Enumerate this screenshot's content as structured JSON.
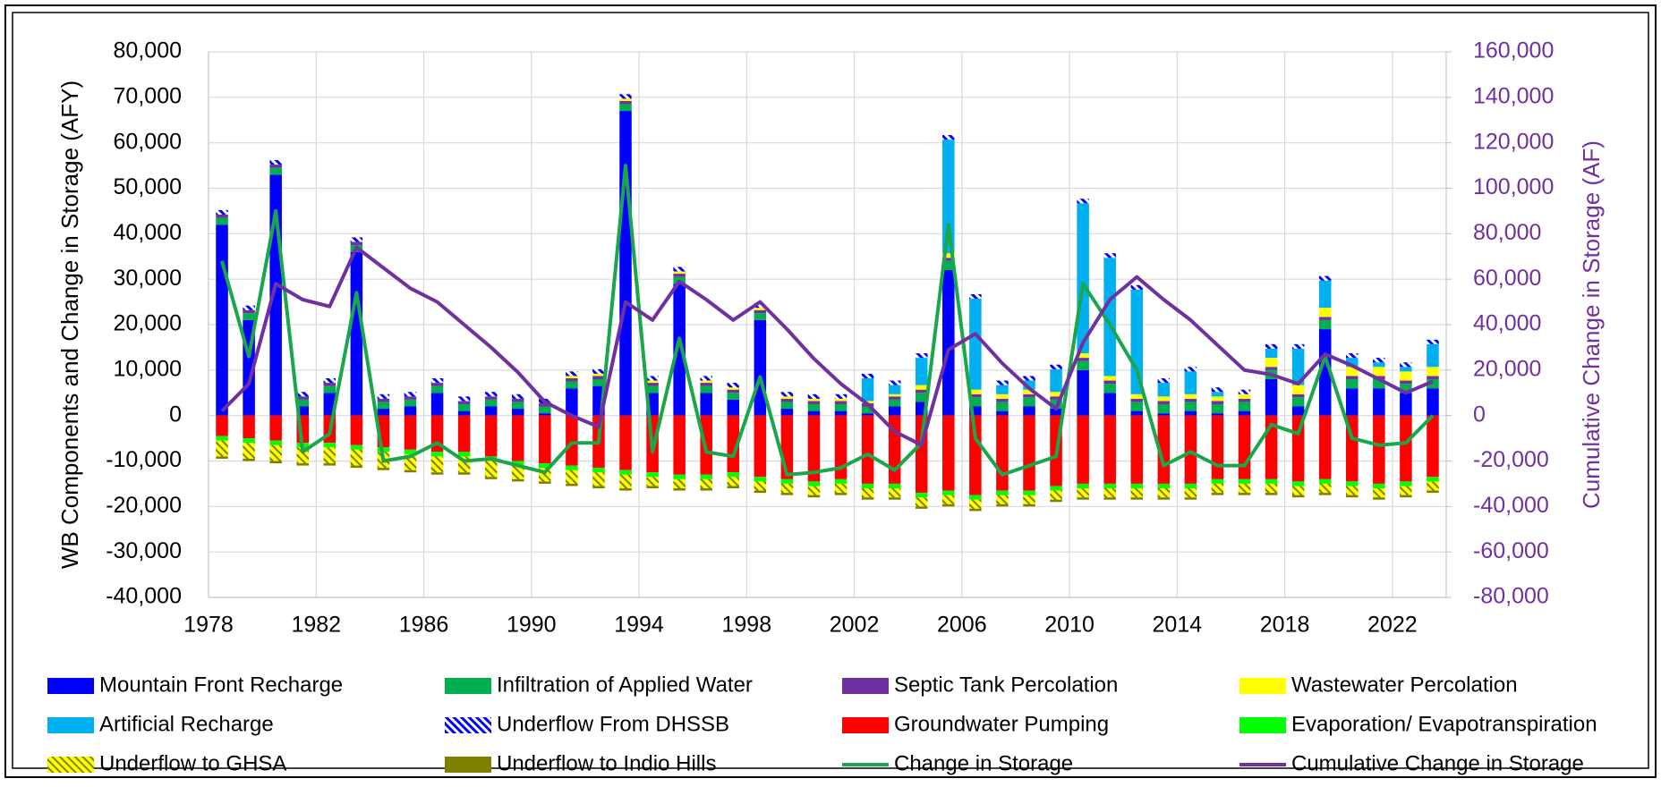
{
  "chart_data": {
    "type": "bar",
    "stacked": true,
    "categories": [
      "1978",
      null,
      null,
      null,
      "1982",
      null,
      null,
      null,
      "1986",
      null,
      null,
      null,
      "1990",
      null,
      null,
      null,
      "1994",
      null,
      null,
      null,
      "1998",
      null,
      null,
      null,
      "2002",
      null,
      null,
      null,
      "2006",
      null,
      null,
      null,
      "2010",
      null,
      null,
      null,
      "2014",
      null,
      null,
      null,
      "2018",
      null,
      null,
      null,
      "2022",
      null
    ],
    "y_label": "WB Components and Change in Storage (AFY)",
    "y2_label": "Cumulative Change in Storage (AF)",
    "ylim": [
      -40000,
      80000
    ],
    "yticks": [
      {
        "value": -40000,
        "label": "-40,000"
      },
      {
        "value": -30000,
        "label": "-30,000"
      },
      {
        "value": -20000,
        "label": "-20,000"
      },
      {
        "value": -10000,
        "label": "-10,000"
      },
      0,
      {
        "value": 10000,
        "label": "10,000"
      },
      {
        "value": 20000,
        "label": "20,000"
      },
      {
        "value": 30000,
        "label": "30,000"
      },
      {
        "value": 40000,
        "label": "40,000"
      },
      {
        "value": 50000,
        "label": "50,000"
      },
      {
        "value": 60000,
        "label": "60,000"
      },
      {
        "value": 70000,
        "label": "70,000"
      },
      {
        "value": 80000,
        "label": "80,000"
      }
    ],
    "y2lim": [
      -80000,
      160000
    ],
    "y2ticks": [
      {
        "value": -80000,
        "label": "-80,000"
      },
      {
        "value": -60000,
        "label": "-60,000"
      },
      {
        "value": -40000,
        "label": "-40,000"
      },
      {
        "value": -20000,
        "label": "-20,000"
      },
      0,
      {
        "value": 20000,
        "label": "20,000"
      },
      {
        "value": 40000,
        "label": "40,000"
      },
      {
        "value": 60000,
        "label": "60,000"
      },
      {
        "value": 80000,
        "label": "80,000"
      },
      {
        "value": 100000,
        "label": "100,000"
      },
      {
        "value": 120000,
        "label": "120,000"
      },
      {
        "value": 140000,
        "label": "140,000"
      },
      {
        "value": 160000,
        "label": "160,000"
      }
    ],
    "grid": true,
    "legend": "bottom",
    "series": [
      {
        "name": "Mountain Front Recharge",
        "color": "#0000ff",
        "values": [
          42000,
          21000,
          53000,
          2000,
          5000,
          36000,
          1500,
          2000,
          5000,
          1000,
          2000,
          1500,
          500,
          6000,
          6500,
          67000,
          5000,
          29000,
          5000,
          3500,
          21000,
          1500,
          1000,
          1000,
          500,
          2000,
          3000,
          32000,
          2000,
          1000,
          2000,
          1500,
          10000,
          5000,
          1000,
          500,
          1000,
          500,
          1000,
          8000,
          2000,
          19000,
          6000,
          6000,
          5000,
          6000
        ]
      },
      {
        "name": "Infiltration of Applied Water",
        "color": "#00b050",
        "values": [
          1500,
          1500,
          1500,
          1500,
          1500,
          1500,
          1500,
          1500,
          1500,
          1500,
          1500,
          1500,
          1500,
          1500,
          1500,
          1500,
          1500,
          1500,
          1500,
          1500,
          1500,
          1500,
          1500,
          1500,
          1500,
          1500,
          2000,
          2000,
          2000,
          2000,
          2000,
          2000,
          2000,
          2000,
          2000,
          2000,
          2000,
          2000,
          2000,
          2000,
          2000,
          2000,
          2000,
          2000,
          2000,
          2000
        ]
      },
      {
        "name": "Septic Tank Percolation",
        "color": "#7030a0",
        "values": [
          700,
          700,
          700,
          700,
          700,
          700,
          700,
          700,
          700,
          700,
          700,
          700,
          700,
          700,
          700,
          700,
          700,
          700,
          700,
          700,
          700,
          700,
          700,
          700,
          700,
          700,
          700,
          700,
          700,
          700,
          700,
          700,
          700,
          700,
          700,
          700,
          700,
          700,
          700,
          700,
          700,
          700,
          700,
          700,
          700,
          700
        ]
      },
      {
        "name": "Wastewater Percolation",
        "color": "#ffff00",
        "values": [
          0,
          0,
          0,
          0,
          0,
          0,
          0,
          0,
          0,
          0,
          0,
          0,
          0,
          500,
          500,
          500,
          500,
          500,
          500,
          500,
          500,
          500,
          500,
          500,
          500,
          500,
          1000,
          1000,
          1000,
          1000,
          1000,
          1000,
          1000,
          1000,
          1000,
          1000,
          1000,
          1000,
          1000,
          2000,
          2000,
          2000,
          2000,
          2000,
          2000,
          2000
        ]
      },
      {
        "name": "Artificial Recharge",
        "color": "#00b0f0",
        "values": [
          0,
          0,
          0,
          0,
          0,
          0,
          0,
          0,
          0,
          0,
          0,
          0,
          0,
          0,
          0,
          0,
          0,
          0,
          0,
          0,
          0,
          0,
          0,
          0,
          5000,
          2000,
          6000,
          25000,
          20000,
          2000,
          2000,
          5000,
          33000,
          26000,
          23000,
          3000,
          5000,
          1000,
          0,
          2000,
          8000,
          6000,
          2000,
          1000,
          1000,
          5000
        ]
      },
      {
        "name": "Underflow From DHSSB",
        "color": "#0000ff",
        "hatch": true,
        "values": [
          1000,
          1000,
          1000,
          1000,
          1000,
          1000,
          1000,
          1000,
          1000,
          1000,
          1000,
          1000,
          1000,
          1000,
          1000,
          1000,
          1000,
          1000,
          1000,
          1000,
          1000,
          1000,
          1000,
          1000,
          1000,
          1000,
          1000,
          1000,
          1000,
          1000,
          1000,
          1000,
          1000,
          1000,
          1000,
          1000,
          1000,
          1000,
          1000,
          1000,
          1000,
          1000,
          1000,
          1000,
          1000,
          1000
        ]
      },
      {
        "name": "Groundwater Pumping",
        "color": "#ff0000",
        "values": [
          -4500,
          -5000,
          -5500,
          -6000,
          -6000,
          -6500,
          -7000,
          -7500,
          -8000,
          -8000,
          -9000,
          -10000,
          -10500,
          -11000,
          -11500,
          -12000,
          -12500,
          -13000,
          -13000,
          -12500,
          -13500,
          -14000,
          -14500,
          -14000,
          -15000,
          -15000,
          -17000,
          -16500,
          -17500,
          -16500,
          -16500,
          -15500,
          -15000,
          -15000,
          -15000,
          -15000,
          -15000,
          -14000,
          -14000,
          -14000,
          -14500,
          -14000,
          -14500,
          -15000,
          -14500,
          -13500
        ]
      },
      {
        "name": "Evaporation/ Evapotranspiration",
        "color": "#00ff00",
        "values": [
          -1000,
          -1000,
          -1000,
          -1000,
          -1000,
          -1000,
          -1000,
          -1000,
          -1000,
          -1000,
          -1000,
          -1000,
          -1000,
          -1000,
          -1000,
          -1000,
          -1000,
          -1000,
          -1000,
          -1000,
          -1000,
          -1000,
          -1000,
          -1000,
          -1000,
          -1000,
          -1000,
          -1000,
          -1000,
          -1000,
          -1000,
          -1000,
          -1000,
          -1000,
          -1000,
          -1000,
          -1000,
          -1000,
          -1000,
          -1000,
          -1000,
          -1000,
          -1000,
          -1000,
          -1000,
          -1000
        ]
      },
      {
        "name": "Underflow to GHSA",
        "color": "#ffff00",
        "hatch": true,
        "values": [
          -3500,
          -3500,
          -3500,
          -3500,
          -3500,
          -3500,
          -3500,
          -3500,
          -3500,
          -3500,
          -3500,
          -3000,
          -3000,
          -3000,
          -3000,
          -3000,
          -2000,
          -2000,
          -2000,
          -2000,
          -2000,
          -2000,
          -2000,
          -2000,
          -2000,
          -2000,
          -2000,
          -2000,
          -2000,
          -2000,
          -2000,
          -2000,
          -2000,
          -2000,
          -2000,
          -2000,
          -2000,
          -2000,
          -2000,
          -2000,
          -2000,
          -2000,
          -2000,
          -2000,
          -2000,
          -2000
        ]
      },
      {
        "name": "Underflow to Indio Hills",
        "color": "#808000",
        "values": [
          -500,
          -500,
          -500,
          -500,
          -500,
          -500,
          -500,
          -500,
          -500,
          -500,
          -500,
          -500,
          -500,
          -500,
          -500,
          -500,
          -500,
          -500,
          -500,
          -500,
          -500,
          -500,
          -500,
          -500,
          -500,
          -500,
          -500,
          -500,
          -500,
          -500,
          -500,
          -500,
          -500,
          -500,
          -500,
          -500,
          -500,
          -500,
          -500,
          -500,
          -500,
          -500,
          -500,
          -500,
          -500,
          -500
        ]
      },
      {
        "name": "Change in Storage",
        "color": "#1aa64a",
        "type": "line",
        "values": [
          34000,
          13000,
          45000,
          -8000,
          -4000,
          27000,
          -10000,
          -9000,
          -6000,
          -10000,
          -9500,
          -11000,
          -12500,
          -6000,
          -6000,
          55000,
          -8000,
          17000,
          -8000,
          -9000,
          8500,
          -13000,
          -12500,
          -11500,
          -8500,
          -12000,
          -6000,
          42000,
          -5000,
          -13000,
          -11000,
          -9000,
          29000,
          20000,
          10000,
          -11000,
          -8000,
          -11000,
          -11000,
          -2000,
          -4000,
          13000,
          -5000,
          -6500,
          -6000,
          0
        ]
      },
      {
        "name": "Cumulative Change in Storage",
        "color": "#7030a0",
        "type": "line",
        "axis": "y2",
        "values": [
          2000,
          14000,
          58000,
          51000,
          48000,
          74000,
          65000,
          56000,
          50000,
          40000,
          30000,
          19000,
          6000,
          0,
          -5000,
          50000,
          42000,
          59000,
          51000,
          42000,
          50000,
          38000,
          25000,
          14000,
          5000,
          -7000,
          -13000,
          29000,
          36000,
          23000,
          12000,
          3000,
          32000,
          51000,
          61000,
          51000,
          42000,
          31000,
          20000,
          18000,
          14000,
          27000,
          22000,
          16000,
          10000,
          15000
        ]
      }
    ]
  }
}
